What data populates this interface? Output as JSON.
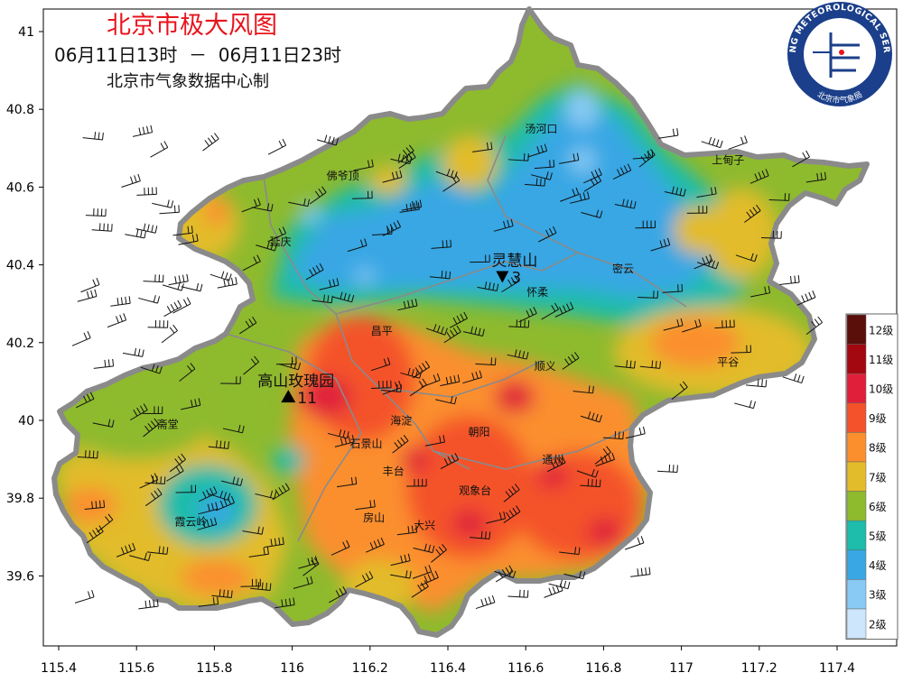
{
  "map": {
    "title": "北京市极大风图",
    "time_range": "06月11日13时  －  06月11日23时",
    "producer": "北京市气象数据中心制",
    "logo_text": "BEIJING METEOROLOGICAL SERVICE",
    "logo_cn": "北京市气象局",
    "x_axis": {
      "ticks": [
        "115.4",
        "115.6",
        "115.8",
        "116",
        "116.2",
        "116.4",
        "116.6",
        "116.8",
        "117",
        "117.2",
        "117.4"
      ]
    },
    "y_axis": {
      "ticks": [
        "41",
        "40.8",
        "40.6",
        "40.4",
        "40.2",
        "40",
        "39.8",
        "39.6"
      ]
    },
    "legend": [
      {
        "label": "12级",
        "color": "#5a0f0a"
      },
      {
        "label": "11级",
        "color": "#a3070f"
      },
      {
        "label": "10级",
        "color": "#e0203a"
      },
      {
        "label": "9级",
        "color": "#f4522a"
      },
      {
        "label": "8级",
        "color": "#fb8f2e"
      },
      {
        "label": "7级",
        "color": "#e2bc2a"
      },
      {
        "label": "6级",
        "color": "#8eba2e"
      },
      {
        "label": "5级",
        "color": "#1dbcab"
      },
      {
        "label": "4级",
        "color": "#38a7e4"
      },
      {
        "label": "3级",
        "color": "#88caf4"
      },
      {
        "label": "2级",
        "color": "#cde6fb"
      }
    ],
    "places": [
      {
        "name": "汤河口",
        "lon": 116.64,
        "lat": 40.74
      },
      {
        "name": "上甸子",
        "lon": 117.12,
        "lat": 40.66
      },
      {
        "name": "佛爷顶",
        "lon": 116.13,
        "lat": 40.62
      },
      {
        "name": "延庆",
        "lon": 115.97,
        "lat": 40.45
      },
      {
        "name": "密云",
        "lon": 116.85,
        "lat": 40.38
      },
      {
        "name": "怀柔",
        "lon": 116.63,
        "lat": 40.32
      },
      {
        "name": "昌平",
        "lon": 116.23,
        "lat": 40.22
      },
      {
        "name": "平谷",
        "lon": 117.12,
        "lat": 40.14
      },
      {
        "name": "顺义",
        "lon": 116.65,
        "lat": 40.13
      },
      {
        "name": "斋堂",
        "lon": 115.68,
        "lat": 39.98
      },
      {
        "name": "海淀",
        "lon": 116.28,
        "lat": 39.99
      },
      {
        "name": "朝阳",
        "lon": 116.48,
        "lat": 39.96
      },
      {
        "name": "石景山",
        "lon": 116.19,
        "lat": 39.93
      },
      {
        "name": "丰台",
        "lon": 116.26,
        "lat": 39.86
      },
      {
        "name": "通州",
        "lon": 116.67,
        "lat": 39.89
      },
      {
        "name": "观象台",
        "lon": 116.47,
        "lat": 39.81
      },
      {
        "name": "房山",
        "lon": 116.21,
        "lat": 39.74
      },
      {
        "name": "霞云岭",
        "lon": 115.74,
        "lat": 39.73
      },
      {
        "name": "大兴",
        "lon": 116.34,
        "lat": 39.72
      }
    ],
    "extremes": [
      {
        "type": "max",
        "name": "高山玫瑰园",
        "value": "11",
        "lon": 115.99,
        "lat": 40.06
      },
      {
        "type": "min",
        "name": "灵慧山",
        "value": "3",
        "lon": 116.54,
        "lat": 40.37
      }
    ],
    "colors": {
      "title": "#e8141c",
      "border": "#8a8a8a"
    }
  }
}
